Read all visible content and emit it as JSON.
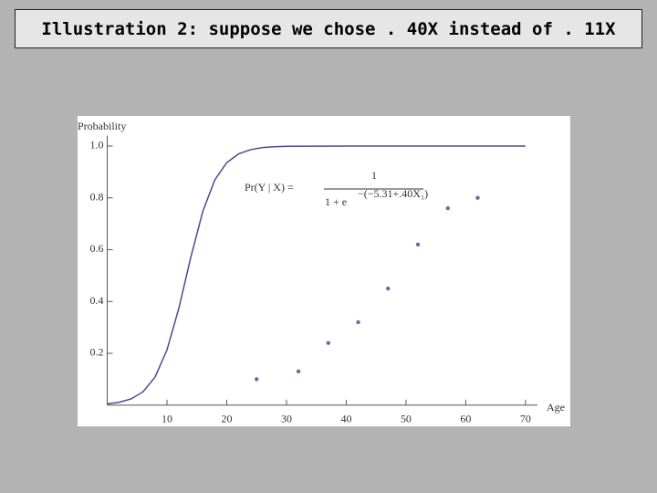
{
  "header": {
    "title": "Illustration 2: suppose we chose . 40X instead of . 11X"
  },
  "chart_data": {
    "type": "scatter-line",
    "xlabel": "Age",
    "ylabel": "Probability",
    "xlim": [
      0,
      72
    ],
    "ylim": [
      0,
      1.04
    ],
    "xticks": [
      10,
      20,
      30,
      40,
      50,
      60,
      70
    ],
    "yticks": [
      {
        "value": 0.2,
        "label": "0.2"
      },
      {
        "value": 0.4,
        "label": "0.4"
      },
      {
        "value": 0.6,
        "label": "0.6"
      },
      {
        "value": 0.8,
        "label": "0.8"
      },
      {
        "value": 1,
        "label": "1.0"
      }
    ],
    "annotation": {
      "lhs": "Pr(Y | X) =",
      "numerator": "1",
      "denominator": "1 + e",
      "exponent": "−(−5.31+.40X₁)"
    },
    "series": [
      {
        "kind": "line",
        "color": "#4b4b8f",
        "x": [
          0,
          2,
          4,
          6,
          8,
          10,
          12,
          14,
          16,
          18,
          20,
          22,
          24,
          26,
          28,
          30,
          40,
          50,
          60,
          70
        ],
        "values": [
          0.0049,
          0.0109,
          0.0239,
          0.0516,
          0.108,
          0.213,
          0.375,
          0.572,
          0.748,
          0.869,
          0.936,
          0.97,
          0.986,
          0.994,
          0.997,
          0.999,
          1,
          1,
          1,
          1
        ]
      },
      {
        "kind": "points",
        "color": "#6a6aa6",
        "x": [
          25,
          32,
          37,
          42,
          47,
          52,
          57,
          62
        ],
        "values": [
          0.1,
          0.13,
          0.24,
          0.32,
          0.45,
          0.62,
          0.76,
          0.8
        ]
      }
    ]
  }
}
